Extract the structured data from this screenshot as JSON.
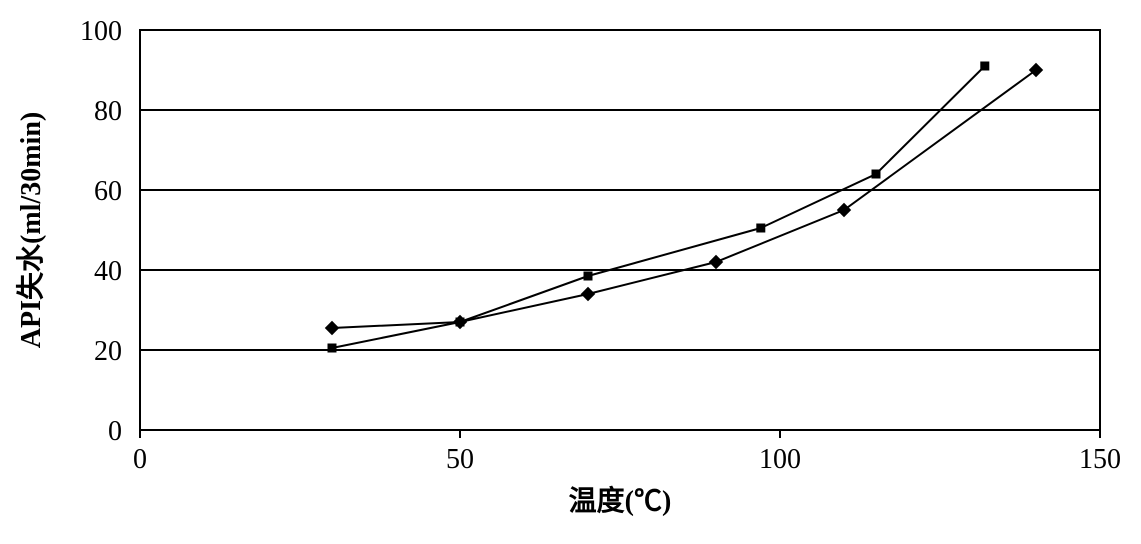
{
  "chart": {
    "type": "line",
    "background_color": "#ffffff",
    "plot_border_color": "#000000",
    "grid_color": "#000000",
    "grid_linewidth": 2,
    "line_color": "#000000",
    "line_width": 2,
    "xlabel": "温度(℃)",
    "ylabel": "API失水(ml/30min)",
    "label_fontsize": 28,
    "tick_fontsize": 28,
    "xlim": [
      0,
      150
    ],
    "ylim": [
      0,
      100
    ],
    "xticks": [
      0,
      50,
      100,
      150
    ],
    "yticks": [
      0,
      20,
      40,
      60,
      80,
      100
    ],
    "series": [
      {
        "name": "series-diamond",
        "marker": "diamond",
        "marker_size": 9,
        "marker_color": "#000000",
        "x": [
          30,
          50,
          70,
          90,
          110,
          140
        ],
        "y": [
          25.5,
          27,
          34,
          42,
          55,
          90
        ]
      },
      {
        "name": "series-square",
        "marker": "square",
        "marker_size": 9,
        "marker_color": "#000000",
        "x": [
          30,
          50,
          70,
          97,
          115,
          132
        ],
        "y": [
          20.5,
          27,
          38.5,
          50.5,
          64,
          91
        ]
      }
    ]
  }
}
